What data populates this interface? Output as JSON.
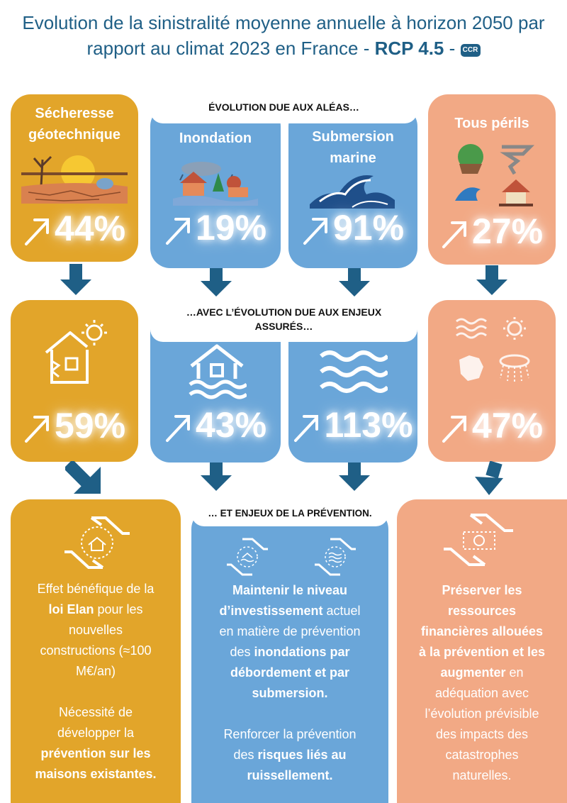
{
  "header": {
    "title_line1": "Evolution de la sinistralité moyenne annuelle à horizon 2050 par",
    "title_line2": "rapport au climat 2023 en France - ",
    "title_rcp": "RCP 4.5",
    "title_dash": " - ",
    "logo_text": "CCR"
  },
  "labels": {
    "aleas": "ÉVOLUTION DUE AUX ALÉAS…",
    "enjeux_line1": "…AVEC L’ÉVOLUTION DUE AUX ENJEUX",
    "enjeux_line2": "ASSURÉS…",
    "prevention": "… ET ENJEUX DE LA PRÉVENTION."
  },
  "hazards": [
    {
      "title_line1": "Sécheresse",
      "title_line2": "géotechnique",
      "alea": "44%",
      "enjeux": "59%",
      "color": "#e2a52a"
    },
    {
      "title_line1": "Inondation",
      "title_line2": "",
      "alea": "19%",
      "enjeux": "43%",
      "color": "#6aa6d9"
    },
    {
      "title_line1": "Submersion",
      "title_line2": "marine",
      "alea": "91%",
      "enjeux": "113%",
      "color": "#6aa6d9"
    },
    {
      "title_line1": "Tous périls",
      "title_line2": "",
      "alea": "27%",
      "enjeux": "47%",
      "color": "#f2a985"
    }
  ],
  "prevention": {
    "left": {
      "p1_a": "Effet bénéfique de la",
      "p1_b_bold": "loi Elan",
      "p1_b": " pour les",
      "p1_c": "nouvelles",
      "p1_d": "constructions (≈100",
      "p1_e": "M€/an)",
      "p2_a": "Nécessité de",
      "p2_b": "développer la",
      "p2_c_bold": "prévention sur les",
      "p2_d_bold": "maisons existantes."
    },
    "middle": {
      "l1_bold": "Maintenir le niveau",
      "l2_bold": "d’investissement",
      "l2": " actuel",
      "l3": "en matière de prévention",
      "l4": "des ",
      "l4_bold": "inondations par",
      "l5_bold": "débordement et par",
      "l6_bold": "submersion.",
      "p2_l1": "Renforcer la prévention",
      "p2_l2": "des ",
      "p2_l2_bold": "risques liés au",
      "p2_l3_bold": "ruissellement."
    },
    "right": {
      "l1_bold": "Préserver les",
      "l2_bold": "ressources",
      "l3_bold": "financières allouées",
      "l4_bold": "à la prévention et les",
      "l5_bold": "augmenter",
      "l5": " en",
      "l6": "adéquation avec",
      "l7": "l’évolution prévisible",
      "l8": "des impacts des",
      "l9": "catastrophes",
      "l10": "naturelles."
    }
  },
  "colors": {
    "gold": "#e2a52a",
    "blue": "#6aa6d9",
    "salmon": "#f2a985",
    "navy": "#1f5f86"
  }
}
